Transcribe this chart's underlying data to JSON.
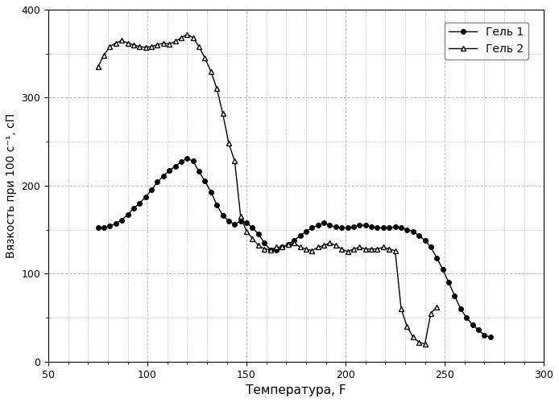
{
  "gel1_x": [
    75,
    78,
    81,
    84,
    87,
    90,
    93,
    96,
    99,
    102,
    105,
    108,
    111,
    114,
    117,
    120,
    123,
    126,
    129,
    132,
    135,
    138,
    141,
    144,
    147,
    150,
    153,
    156,
    159,
    162,
    165,
    168,
    171,
    174,
    177,
    180,
    183,
    186,
    189,
    192,
    195,
    198,
    201,
    204,
    207,
    210,
    213,
    216,
    219,
    222,
    225,
    228,
    231,
    234,
    237,
    240,
    243,
    246,
    249,
    252,
    255,
    258,
    261,
    264,
    267,
    270,
    273
  ],
  "gel1_y": [
    152,
    152,
    154,
    157,
    161,
    167,
    174,
    180,
    187,
    195,
    204,
    211,
    217,
    222,
    227,
    231,
    228,
    216,
    205,
    193,
    178,
    166,
    160,
    156,
    160,
    158,
    152,
    145,
    135,
    127,
    127,
    130,
    133,
    138,
    143,
    148,
    152,
    155,
    158,
    155,
    153,
    152,
    152,
    153,
    155,
    155,
    153,
    152,
    152,
    152,
    153,
    152,
    150,
    148,
    143,
    138,
    130,
    118,
    105,
    90,
    75,
    60,
    50,
    42,
    36,
    30,
    28
  ],
  "gel2_x": [
    75,
    78,
    81,
    84,
    87,
    90,
    93,
    96,
    99,
    102,
    105,
    108,
    111,
    114,
    117,
    120,
    123,
    126,
    129,
    132,
    135,
    138,
    141,
    144,
    147,
    150,
    153,
    156,
    159,
    162,
    165,
    168,
    171,
    174,
    177,
    180,
    183,
    186,
    189,
    192,
    195,
    198,
    201,
    204,
    207,
    210,
    213,
    216,
    219,
    222,
    225,
    228,
    231,
    234,
    237,
    240,
    243,
    246
  ],
  "gel2_y": [
    335,
    348,
    358,
    362,
    365,
    362,
    360,
    358,
    357,
    358,
    360,
    362,
    361,
    364,
    368,
    372,
    368,
    358,
    345,
    330,
    310,
    282,
    248,
    228,
    165,
    148,
    140,
    132,
    128,
    127,
    130,
    130,
    133,
    135,
    130,
    128,
    126,
    130,
    132,
    135,
    132,
    128,
    125,
    128,
    130,
    128,
    128,
    128,
    130,
    128,
    126,
    60,
    40,
    28,
    22,
    20,
    55,
    62
  ],
  "xlabel": "Температура, F",
  "ylabel": "Вязкость при 100 с⁻¹, сП",
  "xlim": [
    50,
    300
  ],
  "ylim": [
    0,
    400
  ],
  "xticks": [
    50,
    100,
    150,
    200,
    250,
    300
  ],
  "yticks": [
    0,
    100,
    200,
    300,
    400
  ],
  "legend_labels": [
    "Гель 1",
    "Гель 2"
  ],
  "grid_color": "#bbbbbb",
  "line_color": "#000000",
  "bg_color": "#ffffff"
}
